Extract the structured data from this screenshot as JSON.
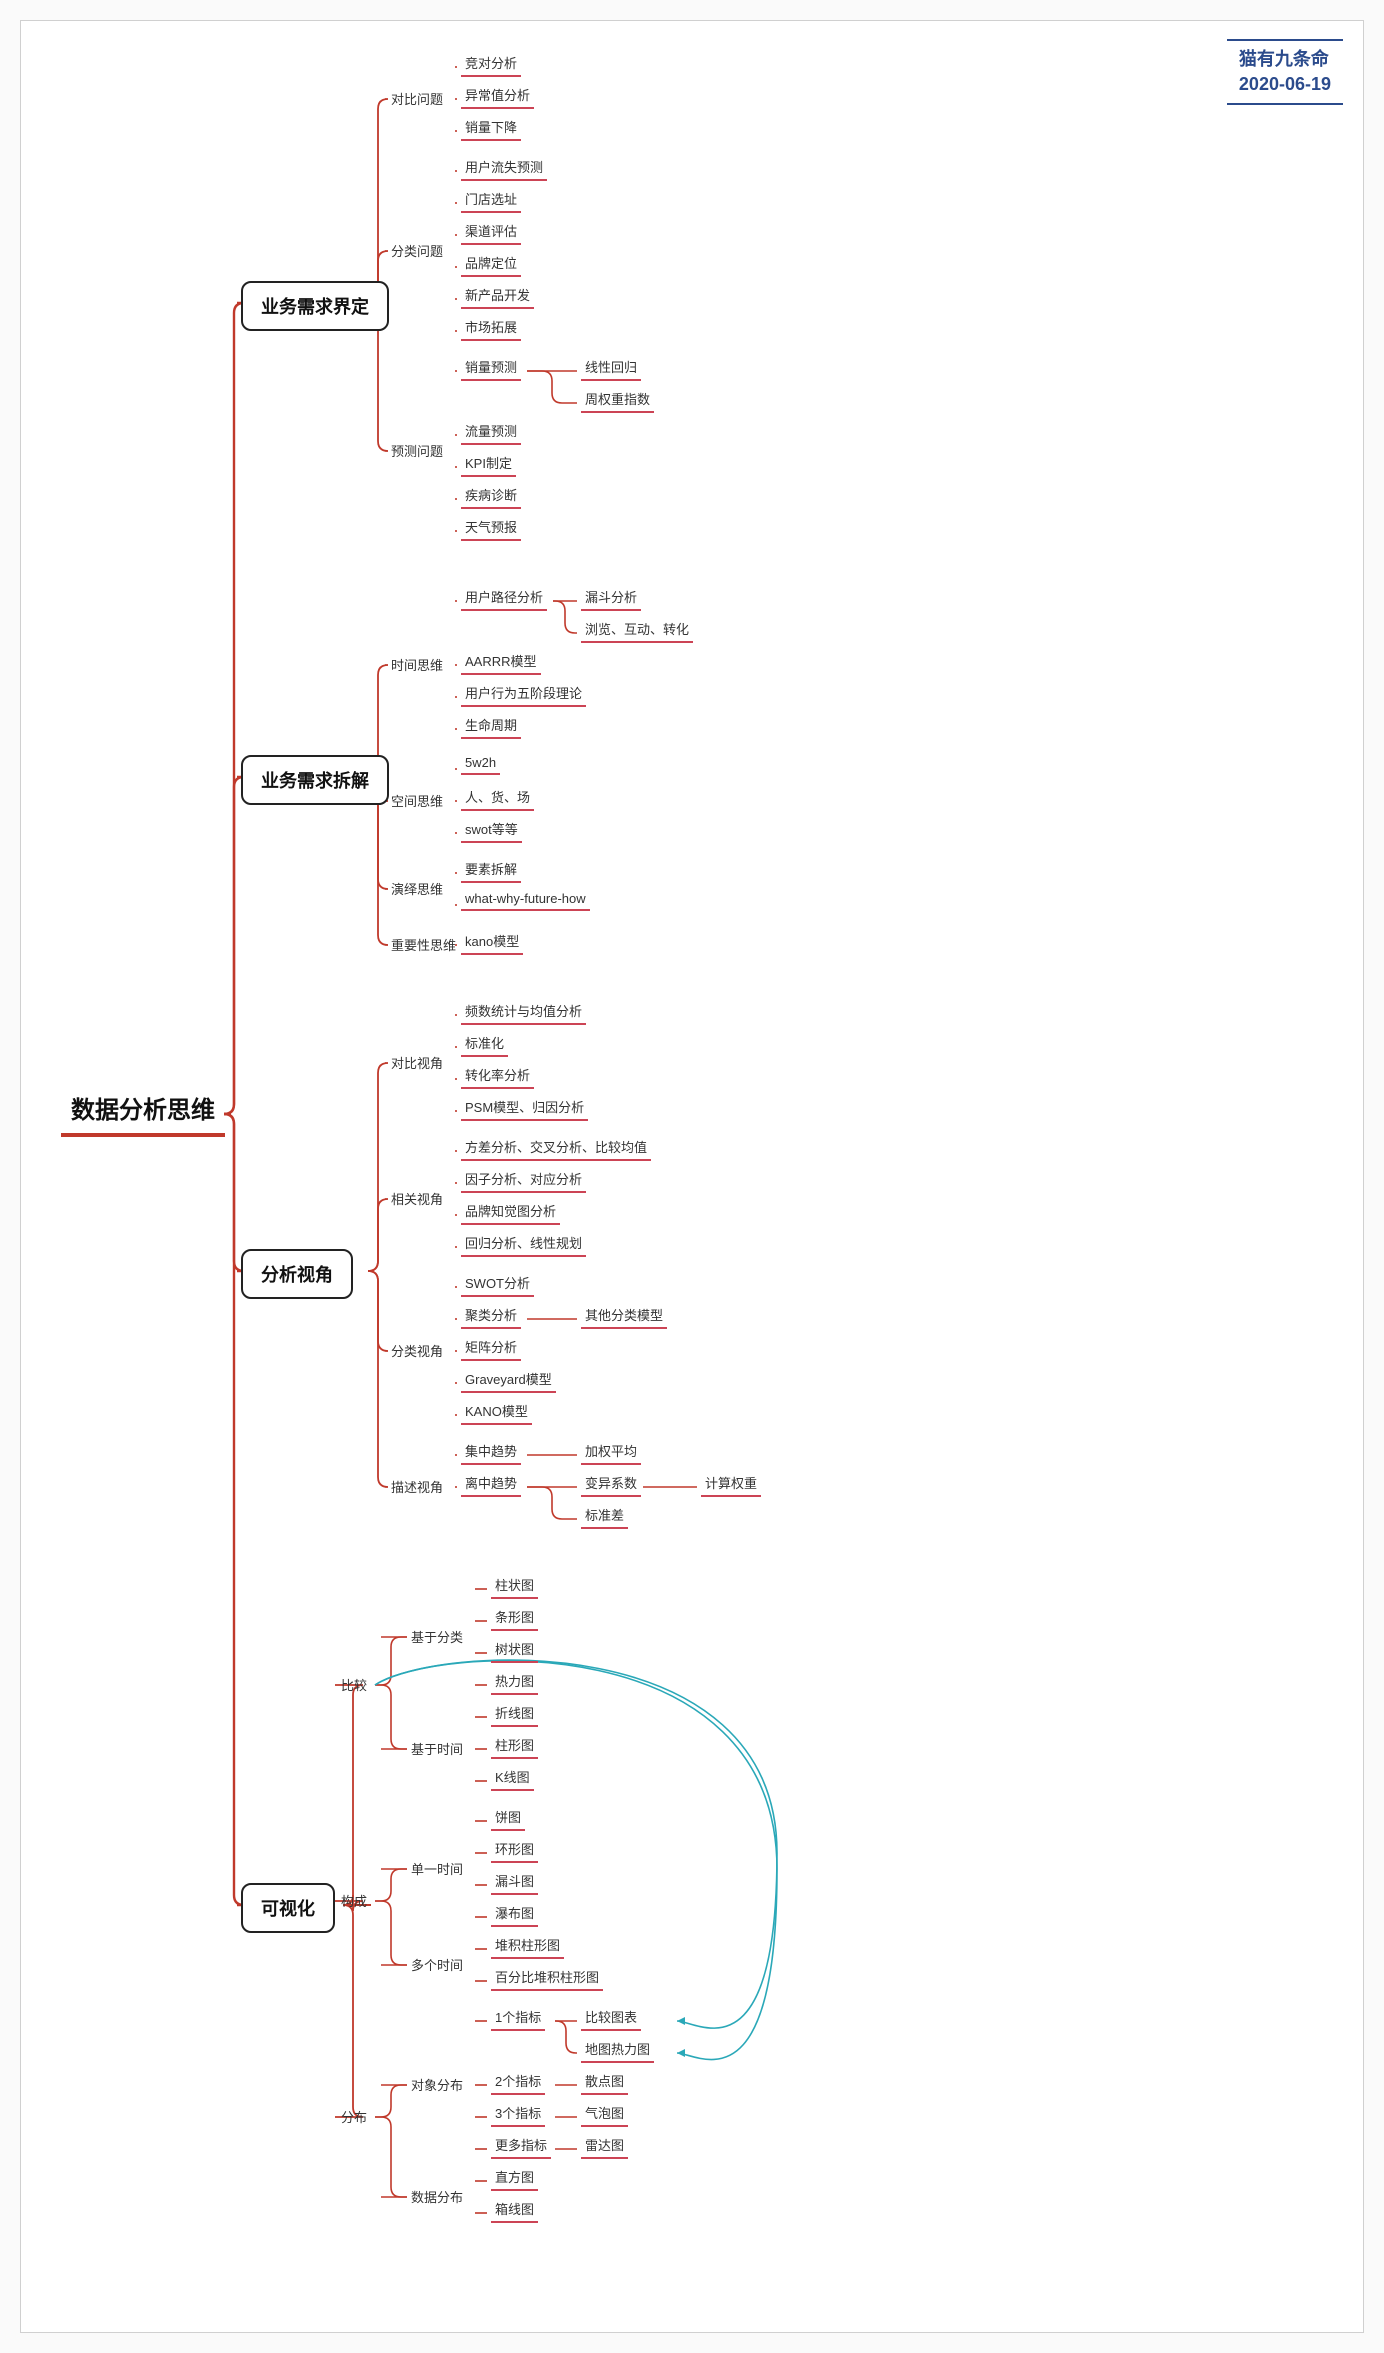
{
  "metadata": {
    "author": "猫有九条命",
    "date": "2020-06-19"
  },
  "colors": {
    "background": "#ffffff",
    "page_bg": "#fafafa",
    "border": "#d0d0d0",
    "text": "#333333",
    "root_underline": "#c0392b",
    "main_border": "#222222",
    "leaf_underline": "#cc4455",
    "connector_red": "#c0392b",
    "connector_teal": "#2aa8b8",
    "attribution_color": "#2b4b8c"
  },
  "fonts": {
    "root_size": 24,
    "main_size": 18,
    "sub_size": 13,
    "leaf_size": 13,
    "attribution_size": 18
  },
  "root": {
    "label": "数据分析思维"
  },
  "mains": [
    {
      "id": "m1",
      "label": "业务需求界定"
    },
    {
      "id": "m2",
      "label": "业务需求拆解"
    },
    {
      "id": "m3",
      "label": "分析视角"
    },
    {
      "id": "m4",
      "label": "可视化"
    }
  ],
  "subs": {
    "m1": [
      {
        "id": "s1a",
        "label": "对比问题",
        "leaves": [
          "竞对分析",
          "异常值分析",
          "销量下降"
        ]
      },
      {
        "id": "s1b",
        "label": "分类问题",
        "leaves": [
          "用户流失预测",
          "门店选址",
          "渠道评估",
          "品牌定位",
          "新产品开发",
          "市场拓展"
        ]
      },
      {
        "id": "s1c",
        "label": "预测问题",
        "leaves": [
          "销量预测",
          "流量预测",
          "KPI制定",
          "疾病诊断",
          "天气预报"
        ],
        "leaf_children": {
          "销量预测": [
            "线性回归",
            "周权重指数"
          ]
        }
      }
    ],
    "m2": [
      {
        "id": "s2a",
        "label": "时间思维",
        "leaves": [
          "用户路径分析",
          "AARRR模型",
          "用户行为五阶段理论",
          "生命周期"
        ],
        "leaf_children": {
          "用户路径分析": [
            "漏斗分析",
            "浏览、互动、转化"
          ]
        }
      },
      {
        "id": "s2b",
        "label": "空间思维",
        "leaves": [
          "5w2h",
          "人、货、场",
          "swot等等"
        ]
      },
      {
        "id": "s2c",
        "label": "演绎思维",
        "leaves": [
          "要素拆解",
          "what-why-future-how"
        ]
      },
      {
        "id": "s2d",
        "label": "重要性思维",
        "leaves": [
          "kano模型"
        ]
      }
    ],
    "m3": [
      {
        "id": "s3a",
        "label": "对比视角",
        "leaves": [
          "频数统计与均值分析",
          "标准化",
          "转化率分析",
          "PSM模型、归因分析"
        ]
      },
      {
        "id": "s3b",
        "label": "相关视角",
        "leaves": [
          "方差分析、交叉分析、比较均值",
          "因子分析、对应分析",
          "品牌知觉图分析",
          "回归分析、线性规划"
        ]
      },
      {
        "id": "s3c",
        "label": "分类视角",
        "leaves": [
          "SWOT分析",
          "聚类分析",
          "矩阵分析",
          "Graveyard模型",
          "KANO模型"
        ],
        "leaf_children": {
          "聚类分析": [
            "其他分类模型"
          ]
        }
      },
      {
        "id": "s3d",
        "label": "描述视角",
        "leaves": [
          "集中趋势",
          "离中趋势"
        ],
        "leaf_children": {
          "集中趋势": [
            "加权平均"
          ],
          "离中趋势": [
            "变异系数",
            "标准差"
          ],
          "变异系数": [
            "计算权重"
          ]
        }
      }
    ],
    "m4": [
      {
        "id": "s4a",
        "label": "比较",
        "groups": [
          {
            "label": "基于分类",
            "leaves": [
              "柱状图",
              "条形图",
              "树状图",
              "热力图"
            ]
          },
          {
            "label": "基于时间",
            "leaves": [
              "折线图",
              "柱形图",
              "K线图"
            ]
          }
        ]
      },
      {
        "id": "s4b",
        "label": "构成",
        "groups": [
          {
            "label": "单一时间",
            "leaves": [
              "饼图",
              "环形图",
              "漏斗图",
              "瀑布图"
            ]
          },
          {
            "label": "多个时间",
            "leaves": [
              "堆积柱形图",
              "百分比堆积柱形图"
            ]
          }
        ]
      },
      {
        "id": "s4c",
        "label": "分布",
        "groups": [
          {
            "label": "对象分布",
            "leaves": [
              "1个指标",
              "2个指标",
              "3个指标",
              "更多指标"
            ],
            "leaf_children": {
              "1个指标": [
                "比较图表",
                "地图热力图"
              ],
              "2个指标": [
                "散点图"
              ],
              "3个指标": [
                "气泡图"
              ],
              "更多指标": [
                "雷达图"
              ]
            }
          },
          {
            "label": "数据分布",
            "leaves": [
              "直方图",
              "箱线图"
            ]
          }
        ]
      }
    ]
  }
}
